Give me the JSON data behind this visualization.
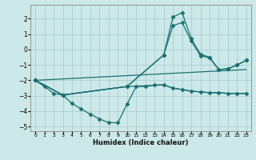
{
  "xlabel": "Humidex (Indice chaleur)",
  "bg_color": "#cce8e8",
  "grid_color": "#aacfcf",
  "line_color": "#1a7070",
  "xlim": [
    -0.5,
    23.5
  ],
  "ylim": [
    -5.3,
    2.9
  ],
  "xticks": [
    0,
    1,
    2,
    3,
    4,
    5,
    6,
    7,
    8,
    9,
    10,
    11,
    12,
    13,
    14,
    15,
    16,
    17,
    18,
    19,
    20,
    21,
    22,
    23
  ],
  "yticks": [
    -5,
    -4,
    -3,
    -2,
    -1,
    0,
    1,
    2
  ],
  "series": [
    {
      "x": [
        0,
        1,
        2,
        3,
        4,
        5,
        6,
        7,
        8,
        9,
        10,
        11,
        12,
        13,
        14,
        15,
        16,
        17,
        18,
        19,
        20,
        21,
        22,
        23
      ],
      "y": [
        -2.0,
        -2.4,
        -2.85,
        -2.95,
        -3.5,
        -3.85,
        -4.2,
        -4.5,
        -4.75,
        -4.75,
        -3.55,
        -2.4,
        -2.4,
        -2.3,
        -2.3,
        -2.5,
        -2.6,
        -2.7,
        -2.75,
        -2.8,
        -2.8,
        -2.85,
        -2.85,
        -2.85
      ],
      "marker": "D",
      "ms": 2.5
    },
    {
      "x": [
        0,
        3,
        10,
        14,
        15,
        16,
        17,
        18,
        19,
        20,
        21,
        22,
        23
      ],
      "y": [
        -2.0,
        -2.95,
        -2.4,
        -2.3,
        -2.5,
        -2.6,
        -2.7,
        -2.75,
        -2.8,
        -2.8,
        -2.85,
        -2.85,
        -2.85
      ],
      "marker": null,
      "ms": 0
    },
    {
      "x": [
        0,
        23
      ],
      "y": [
        -2.0,
        -1.3
      ],
      "marker": null,
      "ms": 0
    },
    {
      "x": [
        0,
        3,
        10,
        14,
        15,
        16,
        17,
        18,
        19,
        20,
        21,
        22,
        23
      ],
      "y": [
        -2.0,
        -2.95,
        -2.4,
        -0.35,
        1.55,
        1.75,
        0.55,
        -0.4,
        -0.55,
        -1.3,
        -1.25,
        -1.0,
        -0.7
      ],
      "marker": "D",
      "ms": 2.5
    },
    {
      "x": [
        0,
        3,
        10,
        14,
        15,
        16,
        17,
        18,
        19,
        20,
        21,
        22,
        23
      ],
      "y": [
        -2.0,
        -2.95,
        -2.4,
        -0.35,
        2.1,
        2.4,
        0.7,
        -0.3,
        -0.5,
        -1.3,
        -1.25,
        -1.0,
        -0.7
      ],
      "marker": "D",
      "ms": 2.5
    }
  ]
}
